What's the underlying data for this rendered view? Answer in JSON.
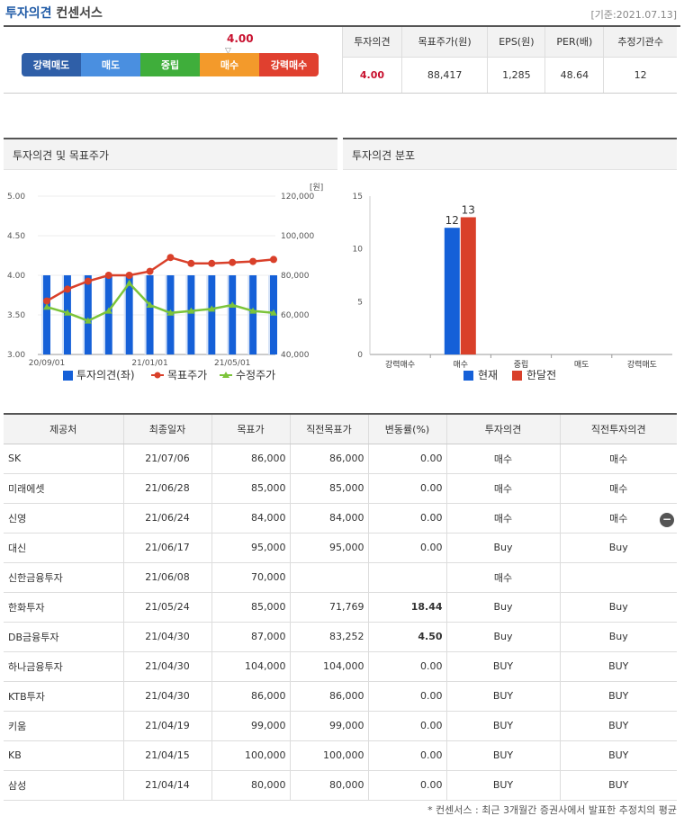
{
  "header": {
    "title_a": "투자의견",
    "title_b": "컨센서스",
    "date": "[기준:2021.07.13]"
  },
  "gauge": {
    "value": "4.00",
    "arrow": "▽",
    "segments": [
      {
        "label": "강력매도",
        "color": "#2f5fa8"
      },
      {
        "label": "매도",
        "color": "#4a8fe0"
      },
      {
        "label": "중립",
        "color": "#3fae3b"
      },
      {
        "label": "매수",
        "color": "#f39a2b"
      },
      {
        "label": "강력매수",
        "color": "#e0402f"
      }
    ]
  },
  "summary": {
    "headers": [
      "투자의견",
      "목표주가(원)",
      "EPS(원)",
      "PER(배)",
      "추정기관수"
    ],
    "values": [
      "4.00",
      "88,417",
      "1,285",
      "48.64",
      "12"
    ]
  },
  "chart_left": {
    "title": "투자의견 및 목표주가",
    "unit": "[원]",
    "legend": [
      "투자의견(좌)",
      "목표주가",
      "수정주가"
    ],
    "colors": {
      "bar": "#1560d8",
      "target": "#d9402a",
      "price": "#7cc43a"
    }
  },
  "chart_right": {
    "title": "투자의견 분포",
    "legend": [
      "현재",
      "한달전"
    ],
    "colors": {
      "current": "#1560d8",
      "month_ago": "#d9402a"
    }
  },
  "chart_data": [
    {
      "type": "bar",
      "title": "투자의견 및 목표주가",
      "x_ticks": [
        "20/09/01",
        "21/01/01",
        "21/05/01"
      ],
      "y_left": {
        "ticks": [
          "3.00",
          "3.50",
          "4.00",
          "4.50",
          "5.00"
        ],
        "ylim": [
          3.0,
          5.0
        ]
      },
      "y_right": {
        "ticks": [
          "40,000",
          "60,000",
          "80,000",
          "100,000",
          "120,000"
        ],
        "ylim": [
          40000,
          120000
        ]
      },
      "series": [
        {
          "name": "투자의견(좌)",
          "type": "bar",
          "axis": "left",
          "values": [
            4,
            4,
            4,
            4,
            4,
            4,
            4,
            4,
            4,
            4,
            4,
            4
          ]
        },
        {
          "name": "목표주가",
          "type": "line",
          "axis": "right",
          "values": [
            67000,
            73000,
            77000,
            80000,
            80000,
            82000,
            89000,
            86000,
            86000,
            86500,
            87000,
            88000
          ]
        },
        {
          "name": "수정주가",
          "type": "line",
          "axis": "right",
          "values": [
            64000,
            61000,
            57000,
            62000,
            76000,
            65000,
            61000,
            62000,
            63000,
            65000,
            62000,
            61000
          ]
        }
      ]
    },
    {
      "type": "bar",
      "title": "투자의견 분포",
      "categories": [
        "강력매수",
        "매수",
        "중립",
        "매도",
        "강력매도"
      ],
      "ylim": [
        0,
        15
      ],
      "y_ticks": [
        "0",
        "5",
        "10",
        "15"
      ],
      "series": [
        {
          "name": "현재",
          "values": [
            0,
            12,
            0,
            0,
            0
          ]
        },
        {
          "name": "한달전",
          "values": [
            0,
            13,
            0,
            0,
            0
          ]
        }
      ]
    }
  ],
  "list": {
    "headers": [
      "제공처",
      "최종일자",
      "목표가",
      "직전목표가",
      "변동률(%)",
      "투자의견",
      "직전투자의견"
    ],
    "rows": [
      [
        "SK",
        "21/07/06",
        "86,000",
        "86,000",
        "0.00",
        "매수",
        "매수"
      ],
      [
        "미래에셋",
        "21/06/28",
        "85,000",
        "85,000",
        "0.00",
        "매수",
        "매수"
      ],
      [
        "신영",
        "21/06/24",
        "84,000",
        "84,000",
        "0.00",
        "매수",
        "매수"
      ],
      [
        "대신",
        "21/06/17",
        "95,000",
        "95,000",
        "0.00",
        "Buy",
        "Buy"
      ],
      [
        "신한금융투자",
        "21/06/08",
        "70,000",
        "",
        "",
        "매수",
        ""
      ],
      [
        "한화투자",
        "21/05/24",
        "85,000",
        "71,769",
        "18.44",
        "Buy",
        "Buy"
      ],
      [
        "DB금융투자",
        "21/04/30",
        "87,000",
        "83,252",
        "4.50",
        "Buy",
        "Buy"
      ],
      [
        "하나금융투자",
        "21/04/30",
        "104,000",
        "104,000",
        "0.00",
        "BUY",
        "BUY"
      ],
      [
        "KTB투자",
        "21/04/30",
        "86,000",
        "86,000",
        "0.00",
        "BUY",
        "BUY"
      ],
      [
        "키움",
        "21/04/19",
        "99,000",
        "99,000",
        "0.00",
        "BUY",
        "BUY"
      ],
      [
        "KB",
        "21/04/15",
        "100,000",
        "100,000",
        "0.00",
        "BUY",
        "BUY"
      ],
      [
        "삼성",
        "21/04/14",
        "80,000",
        "80,000",
        "0.00",
        "BUY",
        "BUY"
      ]
    ]
  },
  "footnote": "* 컨센서스 : 최근 3개월간 증권사에서 발표한 추정치의 평균",
  "collapse_button": "−"
}
